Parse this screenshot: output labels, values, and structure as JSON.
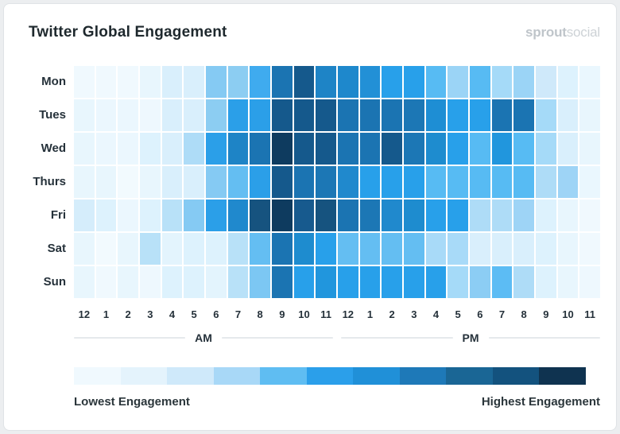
{
  "header": {
    "title": "Twitter Global Engagement",
    "logo": {
      "part1": "sprout",
      "part2": "social"
    }
  },
  "chart_data": {
    "type": "heatmap",
    "title": "Twitter Global Engagement",
    "rows": [
      "Mon",
      "Tues",
      "Wed",
      "Thurs",
      "Fri",
      "Sat",
      "Sun"
    ],
    "columns": [
      "12",
      "1",
      "2",
      "3",
      "4",
      "5",
      "6",
      "7",
      "8",
      "9",
      "10",
      "11",
      "12",
      "1",
      "2",
      "3",
      "4",
      "5",
      "6",
      "7",
      "8",
      "9",
      "10",
      "11"
    ],
    "column_groups": [
      {
        "label": "AM",
        "span": [
          0,
          11
        ]
      },
      {
        "label": "PM",
        "span": [
          12,
          23
        ]
      }
    ],
    "gridline_color": "#ffffff",
    "cell_colors": [
      [
        "#f0f9fe",
        "#f0f9fe",
        "#f0f9fe",
        "#e8f6fd",
        "#d9effc",
        "#d9effc",
        "#85caf3",
        "#8ccdf2",
        "#3fabef",
        "#1b74b2",
        "#15598c",
        "#1e84c6",
        "#1e88cc",
        "#2290d6",
        "#28a0ea",
        "#28a0ea",
        "#57bbf3",
        "#9bd4f6",
        "#57bbf3",
        "#a5daf8",
        "#9bd4f6",
        "#cfe9fa",
        "#ddf2fd",
        "#eaf7fe"
      ],
      [
        "#e8f6fd",
        "#ebf7fe",
        "#ebf7fe",
        "#eef8fe",
        "#d9effc",
        "#d9effc",
        "#8ccdf2",
        "#2b9fe8",
        "#2b9fe8",
        "#15598c",
        "#15598c",
        "#15598c",
        "#1b74b2",
        "#1b74b2",
        "#1b74b2",
        "#1c77b5",
        "#1e8ed4",
        "#28a0ea",
        "#28a0ea",
        "#1b74b2",
        "#1b74b2",
        "#a5daf8",
        "#d9effc",
        "#e8f6fd"
      ],
      [
        "#e8f6fd",
        "#ebf7fe",
        "#ebf7fe",
        "#ddf2fd",
        "#d9effc",
        "#aedcf7",
        "#2b9fe8",
        "#1e84c6",
        "#1b74b2",
        "#0e3b5f",
        "#15598c",
        "#15598c",
        "#1b74b2",
        "#1b74b2",
        "#15598c",
        "#1c77b5",
        "#1e8ccf",
        "#28a0ea",
        "#57bbf3",
        "#2196dd",
        "#57bbf3",
        "#a5daf8",
        "#d9effc",
        "#e8f6fd"
      ],
      [
        "#e8f6fd",
        "#e8f6fd",
        "#f2fafe",
        "#e8f6fd",
        "#d9effc",
        "#d9effc",
        "#85caf3",
        "#64bef2",
        "#2b9fe8",
        "#15598c",
        "#1b74b2",
        "#1c77b5",
        "#2089cd",
        "#28a0ea",
        "#28a0ea",
        "#28a0ea",
        "#57bbf3",
        "#57bbf3",
        "#57bbf3",
        "#57bbf3",
        "#57bbf3",
        "#aedcf7",
        "#9ed4f6",
        "#eaf7fe"
      ],
      [
        "#d5edfb",
        "#ddf2fd",
        "#ebf7fe",
        "#ddf2fd",
        "#b8e1f8",
        "#85caf3",
        "#2b9fe8",
        "#2089cd",
        "#16537f",
        "#0e3b5f",
        "#175a8e",
        "#16537f",
        "#1b74b2",
        "#1c77b5",
        "#2089cd",
        "#1e8ccf",
        "#28a0ea",
        "#28a0ea",
        "#aedcf7",
        "#aedcf7",
        "#9ed4f6",
        "#ddf2fd",
        "#e8f6fd",
        "#f0f9fe"
      ],
      [
        "#e8f6fd",
        "#f2fafe",
        "#e8f6fd",
        "#b8e1f8",
        "#e3f4fd",
        "#ddf2fd",
        "#ddf2fd",
        "#b8e1f8",
        "#64bef2",
        "#1b74b2",
        "#1e8ccf",
        "#28a0ea",
        "#64bef2",
        "#64bef2",
        "#64bef2",
        "#64bef2",
        "#a8daf8",
        "#a8daf8",
        "#d9effc",
        "#d9effc",
        "#d9effc",
        "#ddf2fd",
        "#e8f6fd",
        "#f0f9fe"
      ],
      [
        "#e8f6fd",
        "#f0f9fe",
        "#e8f6fd",
        "#eef8fe",
        "#ddf2fd",
        "#ddf2fd",
        "#e3f4fd",
        "#b8e1f8",
        "#7cc7f3",
        "#1b74b2",
        "#28a0ea",
        "#2196dd",
        "#28a0ea",
        "#28a0ea",
        "#28a0ea",
        "#28a0ea",
        "#28a0ea",
        "#a5daf8",
        "#8ccdf4",
        "#5cbcf4",
        "#aedcf7",
        "#ddf2fd",
        "#e8f6fd",
        "#eef8fe"
      ]
    ],
    "intensity_0_10": [
      [
        0,
        0,
        0,
        0.5,
        1.5,
        1.5,
        3.5,
        3.5,
        5,
        8,
        9,
        7,
        7,
        6.5,
        6,
        6,
        4,
        3,
        4,
        3,
        3,
        2,
        1,
        0.5
      ],
      [
        0.5,
        0.5,
        0.5,
        0.5,
        1.5,
        1.5,
        3.5,
        6,
        6,
        9,
        9,
        9,
        8,
        8,
        8,
        8,
        6.5,
        6,
        6,
        8,
        8,
        3,
        1.5,
        0.5
      ],
      [
        0.5,
        0.5,
        0.5,
        1,
        1.5,
        2.5,
        6,
        7,
        8,
        10,
        9,
        9,
        8,
        8,
        9,
        8,
        6.5,
        6,
        4,
        6.5,
        4,
        3,
        1.5,
        0.5
      ],
      [
        0.5,
        0.5,
        0,
        0.5,
        1.5,
        1.5,
        3.5,
        4,
        6,
        9,
        8,
        8,
        7,
        6,
        6,
        6,
        4,
        4,
        4,
        4,
        4,
        2.5,
        3,
        0.5
      ],
      [
        1.5,
        1,
        0.5,
        1,
        2.5,
        3.5,
        6,
        7,
        9.5,
        10,
        9,
        9.5,
        8,
        8,
        7,
        6.5,
        6,
        6,
        2.5,
        2.5,
        3,
        1,
        0.5,
        0
      ],
      [
        0.5,
        0,
        0.5,
        2.5,
        1,
        1,
        1,
        2.5,
        4,
        8,
        6.5,
        6,
        4,
        4,
        4,
        4,
        3,
        3,
        1.5,
        1.5,
        1.5,
        1,
        0.5,
        0
      ],
      [
        0.5,
        0,
        0.5,
        0.5,
        1,
        1,
        1,
        2.5,
        3.5,
        8,
        6,
        6.5,
        6,
        6,
        6,
        6,
        6,
        3,
        3.5,
        4,
        2.5,
        1,
        0.5,
        0.5
      ]
    ],
    "legend": {
      "colors": [
        "#f0f9fe",
        "#e4f3fc",
        "#cfe9fa",
        "#a8d8f7",
        "#5fbdf2",
        "#2b9fea",
        "#2090d8",
        "#1e79b8",
        "#1a6695",
        "#13527e",
        "#0f3350"
      ],
      "low_label": "Lowest Engagement",
      "high_label": "Highest Engagement"
    }
  }
}
